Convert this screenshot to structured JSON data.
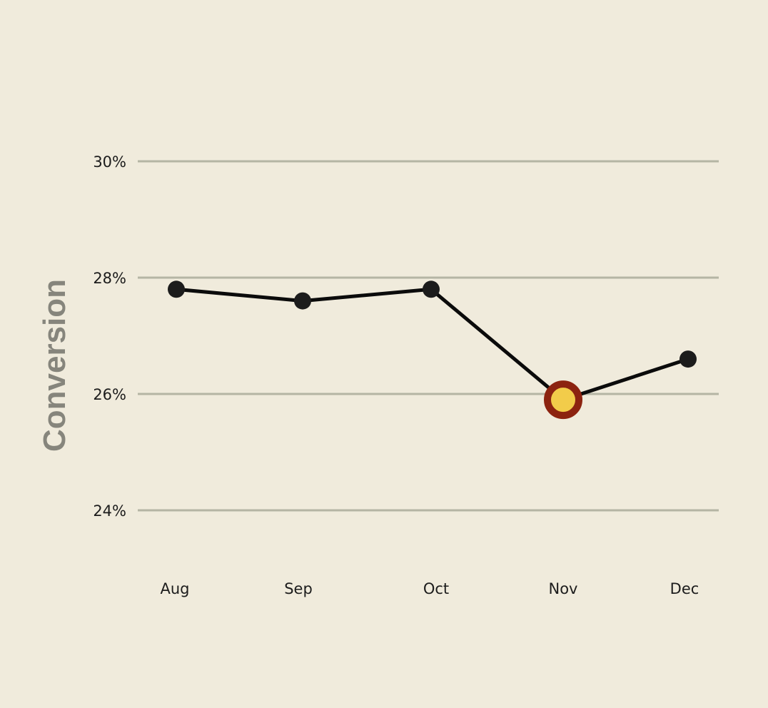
{
  "chart_data": {
    "type": "line",
    "categories": [
      "Aug",
      "Sep",
      "Oct",
      "Nov",
      "Dec"
    ],
    "values": [
      27.8,
      27.6,
      27.8,
      25.9,
      26.6
    ],
    "ylabel": "Conversion",
    "xlabel": "",
    "title": "",
    "ylim": [
      23.2,
      31.6
    ],
    "yticks": [
      30,
      28,
      26,
      24
    ],
    "ytick_labels": [
      "30%",
      "28%",
      "26%",
      "24%"
    ],
    "grid": true,
    "highlight": {
      "category": "Nov",
      "fill_color": "#f2cc4a",
      "ring_color": "#8c2310"
    },
    "colors": {
      "background": "#f0ebdc",
      "line": "#0b0b0b",
      "point": "#1c1c1c",
      "grid": "#b5b5a4",
      "axis_title": "#86857c"
    }
  }
}
